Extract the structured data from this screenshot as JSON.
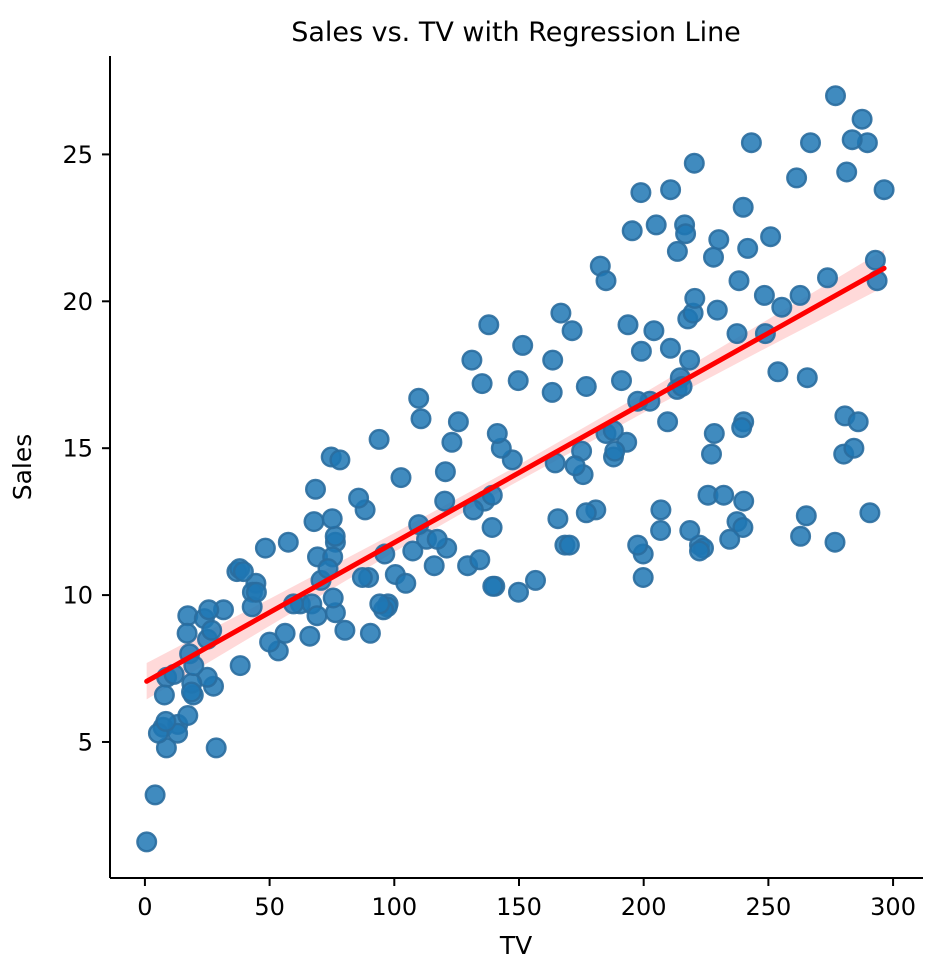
{
  "chart_data": {
    "type": "scatter",
    "title": "Sales vs. TV with Regression Line",
    "xlabel": "TV",
    "ylabel": "Sales",
    "x_ticks": [
      0,
      50,
      100,
      150,
      200,
      250,
      300
    ],
    "y_ticks": [
      5,
      10,
      15,
      20,
      25
    ],
    "xlim": [
      -14,
      312
    ],
    "ylim": [
      0.37,
      28.35
    ],
    "grid": false,
    "legend": "none",
    "series": [
      {
        "name": "observations",
        "points": [
          [
            230.1,
            22.1
          ],
          [
            44.5,
            10.4
          ],
          [
            17.2,
            9.3
          ],
          [
            151.5,
            18.5
          ],
          [
            180.8,
            12.9
          ],
          [
            8.7,
            7.2
          ],
          [
            57.5,
            11.8
          ],
          [
            120.2,
            13.2
          ],
          [
            8.6,
            4.8
          ],
          [
            199.8,
            10.6
          ],
          [
            66.1,
            8.6
          ],
          [
            214.7,
            17.4
          ],
          [
            23.8,
            9.2
          ],
          [
            97.5,
            9.7
          ],
          [
            204.1,
            19.0
          ],
          [
            195.4,
            22.4
          ],
          [
            67.8,
            12.5
          ],
          [
            281.4,
            24.4
          ],
          [
            69.2,
            11.3
          ],
          [
            147.3,
            14.6
          ],
          [
            218.4,
            18.0
          ],
          [
            237.4,
            12.5
          ],
          [
            13.2,
            5.6
          ],
          [
            228.3,
            15.5
          ],
          [
            62.3,
            9.7
          ],
          [
            262.9,
            12.0
          ],
          [
            142.9,
            15.0
          ],
          [
            240.1,
            15.9
          ],
          [
            248.8,
            18.9
          ],
          [
            70.6,
            10.5
          ],
          [
            292.9,
            21.4
          ],
          [
            112.9,
            11.9
          ],
          [
            97.2,
            9.6
          ],
          [
            265.6,
            17.4
          ],
          [
            95.7,
            9.5
          ],
          [
            290.7,
            12.8
          ],
          [
            266.9,
            25.4
          ],
          [
            74.7,
            14.7
          ],
          [
            43.1,
            10.1
          ],
          [
            228.0,
            21.5
          ],
          [
            202.5,
            16.6
          ],
          [
            177.0,
            17.1
          ],
          [
            293.6,
            20.7
          ],
          [
            206.9,
            12.9
          ],
          [
            25.1,
            8.5
          ],
          [
            175.1,
            14.9
          ],
          [
            89.7,
            10.6
          ],
          [
            239.9,
            23.2
          ],
          [
            227.2,
            14.8
          ],
          [
            66.9,
            9.7
          ],
          [
            199.8,
            11.4
          ],
          [
            100.4,
            10.7
          ],
          [
            216.4,
            22.6
          ],
          [
            182.6,
            21.2
          ],
          [
            262.7,
            20.2
          ],
          [
            198.9,
            23.7
          ],
          [
            7.3,
            5.5
          ],
          [
            136.2,
            13.2
          ],
          [
            210.8,
            23.8
          ],
          [
            210.7,
            18.4
          ],
          [
            53.5,
            8.1
          ],
          [
            261.3,
            24.2
          ],
          [
            239.3,
            15.7
          ],
          [
            102.7,
            14.0
          ],
          [
            131.1,
            18.0
          ],
          [
            69.0,
            9.3
          ],
          [
            31.5,
            9.5
          ],
          [
            139.3,
            13.4
          ],
          [
            237.4,
            18.9
          ],
          [
            216.8,
            22.3
          ],
          [
            199.1,
            18.3
          ],
          [
            109.8,
            12.4
          ],
          [
            26.8,
            8.8
          ],
          [
            129.4,
            11.0
          ],
          [
            213.4,
            17.0
          ],
          [
            16.9,
            8.7
          ],
          [
            27.5,
            6.9
          ],
          [
            120.5,
            14.2
          ],
          [
            5.4,
            5.3
          ],
          [
            116.0,
            11.0
          ],
          [
            76.4,
            11.8
          ],
          [
            239.8,
            12.3
          ],
          [
            75.3,
            11.3
          ],
          [
            68.4,
            13.6
          ],
          [
            213.5,
            21.7
          ],
          [
            193.2,
            15.2
          ],
          [
            76.3,
            12.0
          ],
          [
            110.7,
            16.0
          ],
          [
            88.3,
            12.9
          ],
          [
            109.8,
            16.7
          ],
          [
            134.3,
            11.2
          ],
          [
            28.6,
            4.8
          ],
          [
            217.7,
            19.4
          ],
          [
            250.9,
            22.2
          ],
          [
            107.4,
            11.5
          ],
          [
            163.3,
            16.9
          ],
          [
            197.6,
            11.7
          ],
          [
            184.9,
            15.5
          ],
          [
            289.7,
            25.4
          ],
          [
            135.2,
            17.2
          ],
          [
            222.4,
            11.7
          ],
          [
            296.4,
            23.8
          ],
          [
            280.2,
            14.8
          ],
          [
            187.9,
            14.7
          ],
          [
            238.2,
            20.7
          ],
          [
            137.9,
            19.2
          ],
          [
            25.0,
            7.2
          ],
          [
            90.4,
            8.7
          ],
          [
            13.1,
            5.3
          ],
          [
            255.4,
            19.8
          ],
          [
            225.8,
            13.4
          ],
          [
            241.7,
            21.8
          ],
          [
            175.7,
            14.1
          ],
          [
            209.6,
            15.9
          ],
          [
            78.2,
            14.6
          ],
          [
            75.1,
            12.6
          ],
          [
            139.2,
            12.3
          ],
          [
            76.4,
            9.4
          ],
          [
            125.7,
            15.9
          ],
          [
            19.4,
            6.6
          ],
          [
            141.3,
            15.5
          ],
          [
            18.8,
            7.0
          ],
          [
            224.0,
            11.6
          ],
          [
            123.1,
            15.2
          ],
          [
            229.5,
            19.7
          ],
          [
            87.2,
            10.6
          ],
          [
            7.8,
            6.6
          ],
          [
            80.2,
            8.8
          ],
          [
            220.3,
            24.7
          ],
          [
            59.6,
            9.7
          ],
          [
            0.7,
            1.6
          ],
          [
            265.2,
            12.7
          ],
          [
            8.4,
            5.7
          ],
          [
            219.8,
            19.6
          ],
          [
            36.9,
            10.8
          ],
          [
            48.3,
            11.6
          ],
          [
            25.6,
            9.5
          ],
          [
            273.7,
            20.8
          ],
          [
            43.0,
            9.6
          ],
          [
            184.9,
            20.7
          ],
          [
            73.4,
            10.9
          ],
          [
            193.7,
            19.2
          ],
          [
            220.5,
            20.1
          ],
          [
            104.6,
            10.4
          ],
          [
            96.2,
            11.4
          ],
          [
            140.3,
            10.3
          ],
          [
            240.1,
            13.2
          ],
          [
            243.2,
            25.4
          ],
          [
            38.0,
            10.9
          ],
          [
            44.7,
            10.1
          ],
          [
            280.7,
            16.1
          ],
          [
            121.0,
            11.6
          ],
          [
            197.6,
            16.6
          ],
          [
            171.3,
            19.0
          ],
          [
            187.8,
            15.6
          ],
          [
            4.1,
            3.2
          ],
          [
            93.9,
            15.3
          ],
          [
            149.8,
            10.1
          ],
          [
            11.7,
            7.3
          ],
          [
            131.7,
            12.9
          ],
          [
            172.5,
            14.4
          ],
          [
            85.7,
            13.3
          ],
          [
            188.4,
            14.9
          ],
          [
            163.5,
            18.0
          ],
          [
            117.2,
            11.9
          ],
          [
            234.5,
            11.9
          ],
          [
            17.9,
            8.0
          ],
          [
            206.8,
            12.2
          ],
          [
            215.4,
            17.1
          ],
          [
            284.3,
            15.0
          ],
          [
            50.0,
            8.4
          ],
          [
            164.5,
            14.5
          ],
          [
            19.6,
            7.6
          ],
          [
            168.4,
            11.7
          ],
          [
            222.4,
            11.5
          ],
          [
            276.9,
            27.0
          ],
          [
            248.4,
            20.2
          ],
          [
            170.2,
            11.7
          ],
          [
            276.7,
            11.8
          ],
          [
            165.6,
            12.6
          ],
          [
            156.6,
            10.5
          ],
          [
            218.5,
            12.2
          ],
          [
            56.2,
            8.7
          ],
          [
            287.6,
            26.2
          ],
          [
            253.8,
            17.6
          ],
          [
            205.0,
            22.6
          ],
          [
            139.5,
            10.3
          ],
          [
            191.1,
            17.3
          ],
          [
            286.0,
            15.9
          ],
          [
            18.7,
            6.7
          ],
          [
            39.5,
            10.8
          ],
          [
            75.5,
            9.9
          ],
          [
            17.2,
            5.9
          ],
          [
            166.8,
            19.6
          ],
          [
            149.7,
            17.3
          ],
          [
            38.2,
            7.6
          ],
          [
            94.2,
            9.7
          ],
          [
            177.0,
            12.8
          ],
          [
            283.6,
            25.5
          ],
          [
            232.1,
            13.4
          ]
        ]
      }
    ],
    "regression_line": {
      "slope": 0.04754,
      "intercept": 7.0326,
      "x_range": [
        0.7,
        296.4
      ],
      "color": "#ff0000"
    },
    "confidence_band": {
      "x": [
        0.7,
        50,
        100,
        147,
        200,
        250,
        296.4
      ],
      "upper": [
        7.69,
        9.87,
        12.11,
        14.29,
        16.87,
        19.39,
        21.75
      ],
      "lower": [
        6.45,
        8.95,
        11.47,
        13.75,
        16.21,
        18.45,
        20.49
      ],
      "color": "#ffd9d9"
    },
    "style": {
      "point_fill": "#1f77b4",
      "point_opacity": 0.85,
      "point_edge": "#2a6d9e",
      "marker_radius": 9.3,
      "line_width": 5,
      "axis_color": "#000000"
    }
  }
}
